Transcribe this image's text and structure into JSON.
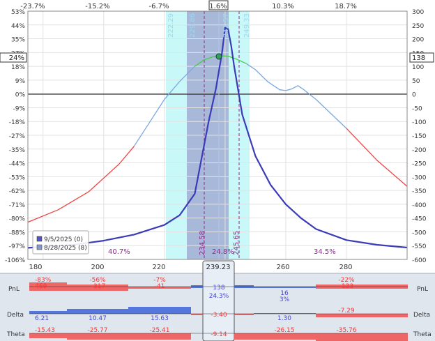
{
  "colors": {
    "payoff_line": "#3b3bb8",
    "profit_curve": "#7aa7e0",
    "profit_curve_green": "#44cc44",
    "loss_curve": "#ee4444",
    "sd1_band": "#c8f8f8",
    "sd2_band": "#a8b8d8",
    "strike_marker": "#8a2b8a",
    "price_line": "#b0c8f0",
    "bottom_panel_bg": "#dfe6ee",
    "pos_bar": "#5577dd",
    "neg_bar": "#ee6666",
    "neg_text": "#ff3333",
    "pos_text": "#4444dd",
    "zero_line": "#000000"
  },
  "top_axis": {
    "labels": [
      "-23.7%",
      "-15.2%",
      "-6.7%",
      "1.6%",
      "10.3%",
      "18.7%"
    ],
    "highlighted": "1.6%"
  },
  "left_axis": {
    "labels": [
      "53%",
      "44%",
      "35%",
      "27%",
      "18%",
      "9%",
      "0%",
      "-9%",
      "-18%",
      "-27%",
      "-35%",
      "-44%",
      "-53%",
      "-62%",
      "-71%",
      "-80%",
      "-88%",
      "-97%",
      "-106%"
    ],
    "current": "24%"
  },
  "right_axis": {
    "labels": [
      "300",
      "250",
      "200",
      "150",
      "100",
      "50",
      "0",
      "-50",
      "-100",
      "-150",
      "-200",
      "-250",
      "-300",
      "-350",
      "-400",
      "-450",
      "-500",
      "-550",
      "-600"
    ],
    "current": "138"
  },
  "bottom_axis": {
    "labels": [
      "180",
      "200",
      "220",
      "240",
      "260",
      "280"
    ],
    "current": "239.23"
  },
  "vertical_labels": {
    "sd_labels": [
      "222.29",
      "229.86",
      "242.57",
      "249.33"
    ],
    "strike_labels": [
      "234.58",
      "245.65"
    ]
  },
  "percentage_labels": [
    "40.7%",
    "24.8%",
    "34.5%"
  ],
  "legend": [
    {
      "label": "9/5/2025 (0)",
      "color": "#5555bb"
    },
    {
      "label": "8/28/2025 (8)",
      "color": "#8899cc"
    }
  ],
  "stats_rows": [
    {
      "label": "PnL",
      "right_label": "PnL",
      "current_top": "138",
      "current_bottom": "24.3%",
      "values": [
        {
          "top": "-83%",
          "bottom": "-469"
        },
        {
          "top": "-56%",
          "bottom": "-317"
        },
        {
          "top": "-7%",
          "bottom": "-41"
        },
        {
          "top": "16",
          "bottom": "3%"
        },
        {
          "top": "-22%",
          "bottom": "-123"
        }
      ]
    },
    {
      "label": "Delta",
      "right_label": "Delta",
      "current_top": "-3.40",
      "values": [
        "6.21",
        "10.47",
        "15.63",
        "1.30",
        "-7.29"
      ]
    },
    {
      "label": "Theta",
      "right_label": "Theta",
      "current_top": "-9.14",
      "values": [
        "-15.43",
        "-25.77",
        "-25.41",
        "-26.15",
        "-35.76"
      ]
    }
  ],
  "chart_data": {
    "type": "line",
    "title": "",
    "xlabel": "",
    "ylabel": "",
    "xlim": [
      175,
      300
    ],
    "ylim": [
      -600,
      300
    ],
    "series": [
      {
        "name": "9/5/2025 (0)",
        "x": [
          175,
          190,
          200,
          210,
          220,
          225,
          230,
          234.58,
          237,
          239,
          240,
          241,
          242,
          243,
          245.65,
          250,
          255,
          260,
          265,
          270,
          280,
          290,
          300
        ],
        "values": [
          -558,
          -547,
          -532,
          -510,
          -475,
          -440,
          -362,
          -100,
          20,
          150,
          240,
          235,
          175,
          100,
          -75,
          -225,
          -330,
          -400,
          -450,
          -490,
          -530,
          -547,
          -557
        ]
      },
      {
        "name": "8/28/2025 (8)",
        "x": [
          175,
          185,
          195,
          205,
          210,
          215,
          220,
          225,
          230,
          233,
          236,
          239.23,
          241,
          244,
          247,
          250,
          254,
          258,
          260,
          262,
          264,
          266,
          270,
          280,
          290,
          300
        ],
        "values": [
          -465,
          -420,
          -355,
          -255,
          -190,
          -105,
          -20,
          45,
          100,
          123,
          135,
          138,
          137,
          125,
          110,
          88,
          45,
          15,
          12,
          18,
          30,
          15,
          -20,
          -125,
          -240,
          -335
        ]
      }
    ]
  }
}
